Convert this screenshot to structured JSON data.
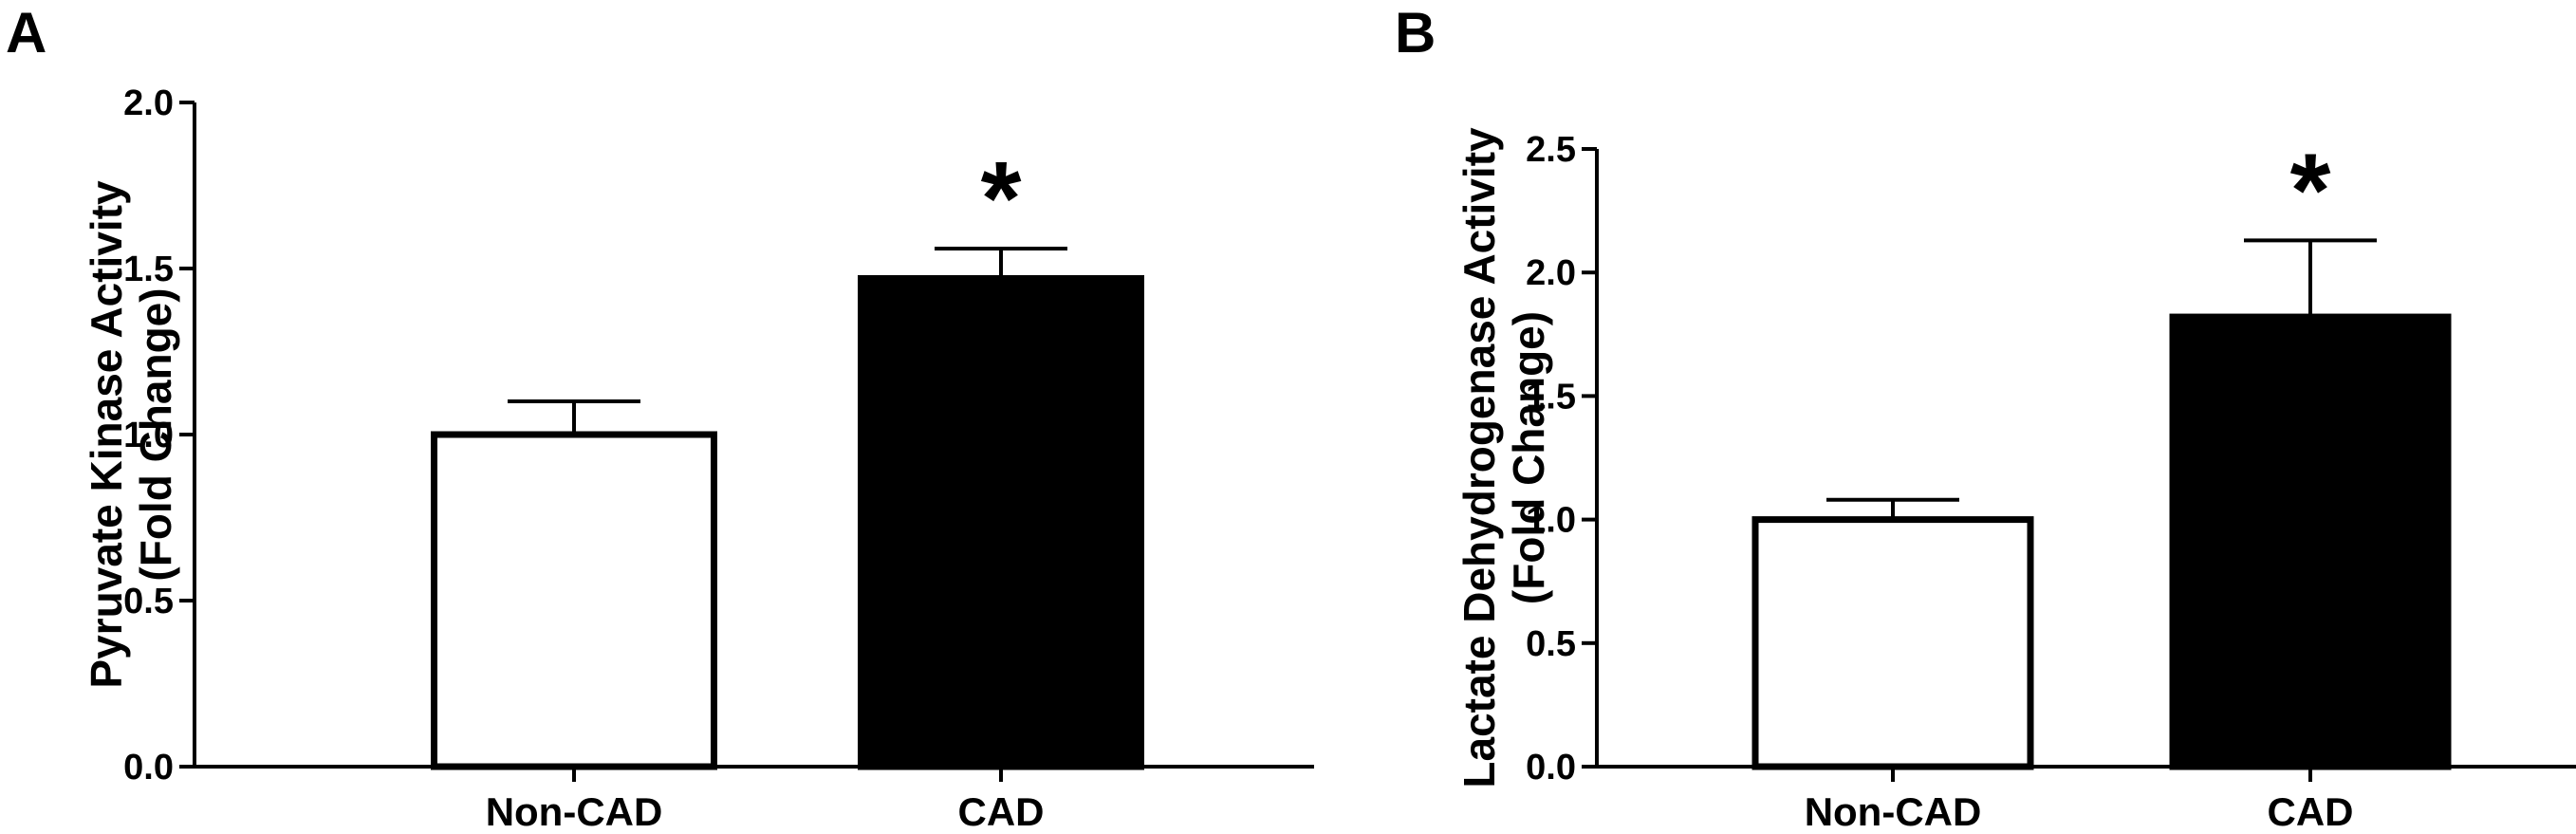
{
  "chart_data": [
    {
      "panel": "A",
      "type": "bar",
      "categories": [
        "Non-CAD",
        "CAD"
      ],
      "values": [
        1.0,
        1.47
      ],
      "errors": [
        0.1,
        0.09
      ],
      "significance": [
        "",
        "*"
      ],
      "bar_colors": [
        "#ffffff",
        "#000000"
      ],
      "ylabel": [
        "Pyruvate Kinase Activity",
        "(Fold Change)"
      ],
      "ylim": [
        0,
        2.0
      ],
      "yticks": [
        0.0,
        0.5,
        1.0,
        1.5,
        2.0
      ],
      "ytick_labels": [
        "0.0",
        "0.5",
        "1.0",
        "1.5",
        "2.0"
      ],
      "grid": false,
      "legend": "none"
    },
    {
      "panel": "B",
      "type": "bar",
      "categories": [
        "Non-CAD",
        "CAD"
      ],
      "values": [
        1.0,
        1.82
      ],
      "errors": [
        0.08,
        0.31
      ],
      "significance": [
        "",
        "*"
      ],
      "bar_colors": [
        "#ffffff",
        "#000000"
      ],
      "ylabel": [
        "Lactate Dehydrogenase Activity",
        "(Fold Change)"
      ],
      "ylim": [
        0,
        2.5
      ],
      "yticks": [
        0.0,
        0.5,
        1.0,
        1.5,
        2.0,
        2.5
      ],
      "ytick_labels": [
        "0.0",
        "0.5",
        "1.0",
        "1.5",
        "2.0",
        "2.5"
      ],
      "grid": false,
      "legend": "none"
    }
  ]
}
